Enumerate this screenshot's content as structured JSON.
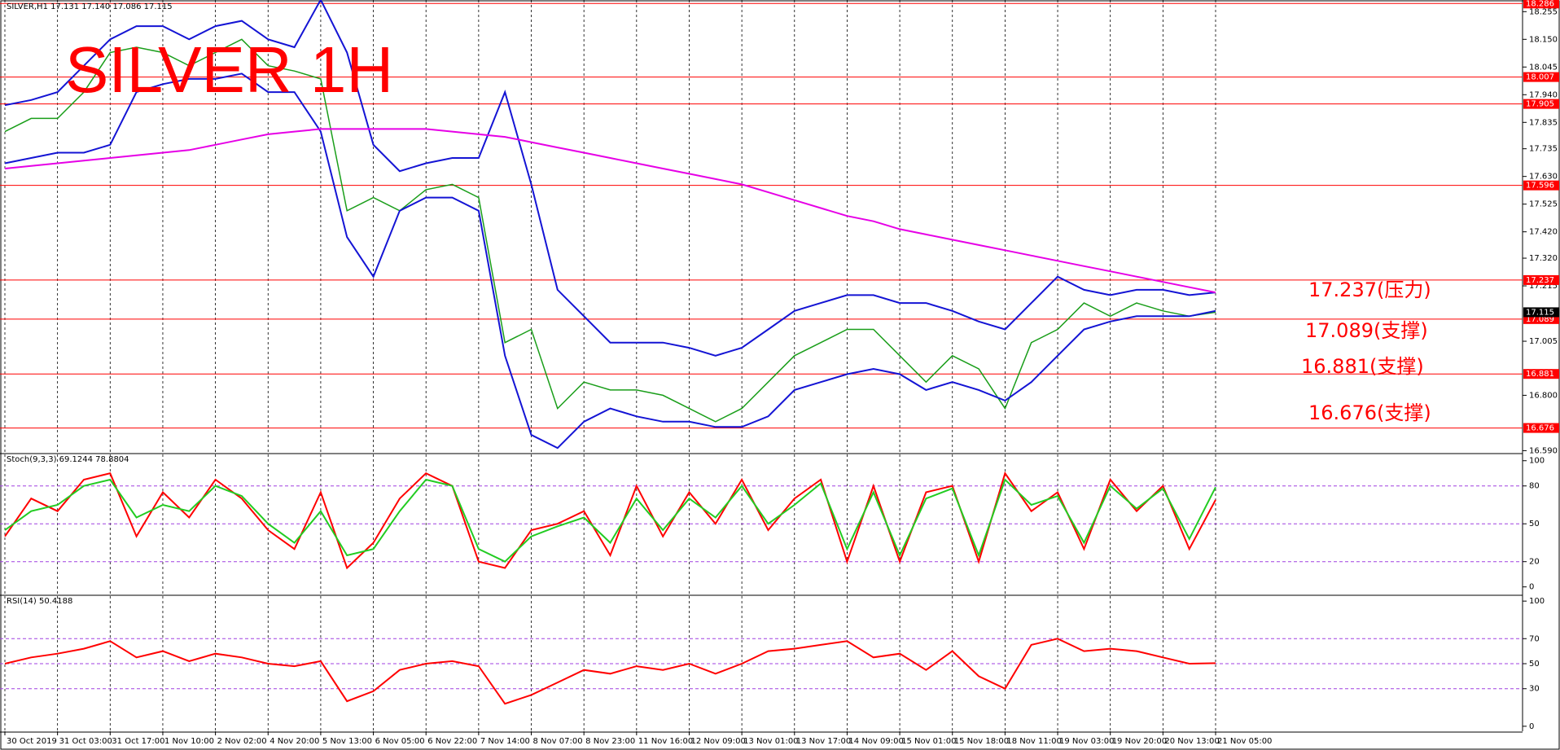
{
  "chart_data": [
    {
      "type": "line",
      "title": "SILVER 1H",
      "header": "SILVER,H1 17.131 17.140 17.086 17.115",
      "categories": [
        "30 Oct 2019",
        null,
        "31 Oct 03:00",
        null,
        "31 Oct 17:00",
        null,
        "1 Nov 10:00",
        null,
        "2 Nov 02:00",
        null,
        "4 Nov 20:00",
        null,
        "5 Nov 13:00",
        null,
        "6 Nov 05:00",
        null,
        "6 Nov 22:00",
        null,
        "7 Nov 14:00",
        null,
        "8 Nov 07:00",
        null,
        "8 Nov 23:00",
        null,
        "11 Nov 16:00",
        null,
        "12 Nov 09:00",
        null,
        "13 Nov 01:00",
        null,
        "13 Nov 17:00",
        null,
        "14 Nov 09:00",
        null,
        "15 Nov 01:00",
        null,
        "15 Nov 18:00",
        null,
        "18 Nov 11:00",
        null,
        "19 Nov 03:00",
        null,
        "19 Nov 20:00",
        null,
        "20 Nov 13:00",
        null,
        "21 Nov 05:00"
      ],
      "series": [
        {
          "name": "Close",
          "color": "#1a9e1a",
          "values": [
            17.8,
            17.85,
            17.85,
            17.95,
            18.1,
            18.12,
            18.1,
            18.05,
            18.1,
            18.15,
            18.05,
            18.03,
            18.0,
            17.5,
            17.55,
            17.5,
            17.58,
            17.6,
            17.55,
            17.0,
            17.05,
            16.75,
            16.85,
            16.82,
            16.82,
            16.8,
            16.75,
            16.7,
            16.75,
            16.85,
            16.95,
            17.0,
            17.05,
            17.05,
            16.95,
            16.85,
            16.95,
            16.9,
            16.75,
            17.0,
            17.05,
            17.15,
            17.1,
            17.15,
            17.12,
            17.1,
            17.115
          ]
        },
        {
          "name": "Upper band",
          "color": "#1414d4",
          "values": [
            17.9,
            17.92,
            17.95,
            18.05,
            18.15,
            18.2,
            18.2,
            18.15,
            18.2,
            18.22,
            18.15,
            18.12,
            18.3,
            18.1,
            17.75,
            17.65,
            17.68,
            17.7,
            17.7,
            17.95,
            17.6,
            17.2,
            17.1,
            17.0,
            17.0,
            17.0,
            16.98,
            16.95,
            16.98,
            17.05,
            17.12,
            17.15,
            17.18,
            17.18,
            17.15,
            17.15,
            17.12,
            17.08,
            17.05,
            17.15,
            17.25,
            17.2,
            17.18,
            17.2,
            17.2,
            17.18,
            17.19
          ]
        },
        {
          "name": "Lower band",
          "color": "#1414d4",
          "values": [
            17.68,
            17.7,
            17.72,
            17.72,
            17.75,
            17.95,
            17.98,
            18.0,
            18.0,
            18.02,
            17.95,
            17.95,
            17.8,
            17.4,
            17.25,
            17.5,
            17.55,
            17.55,
            17.5,
            16.95,
            16.65,
            16.6,
            16.7,
            16.75,
            16.72,
            16.7,
            16.7,
            16.68,
            16.68,
            16.72,
            16.82,
            16.85,
            16.88,
            16.9,
            16.88,
            16.82,
            16.85,
            16.82,
            16.78,
            16.85,
            16.95,
            17.05,
            17.08,
            17.1,
            17.1,
            17.1,
            17.12
          ]
        },
        {
          "name": "MA",
          "color": "#e600e6",
          "values": [
            17.66,
            17.67,
            17.68,
            17.69,
            17.7,
            17.71,
            17.72,
            17.73,
            17.75,
            17.77,
            17.79,
            17.8,
            17.81,
            17.81,
            17.81,
            17.81,
            17.81,
            17.8,
            17.79,
            17.78,
            17.76,
            17.74,
            17.72,
            17.7,
            17.68,
            17.66,
            17.64,
            17.62,
            17.6,
            17.57,
            17.54,
            17.51,
            17.48,
            17.46,
            17.43,
            17.41,
            17.39,
            17.37,
            17.35,
            17.33,
            17.31,
            17.29,
            17.27,
            17.25,
            17.23,
            17.21,
            17.19
          ]
        }
      ],
      "ylim": [
        16.582,
        18.293
      ],
      "yticks": [
        18.255,
        {
          "value": 18.15,
          "label": "18.150"
        },
        18.045,
        {
          "value": 17.94,
          "label": "17.940"
        },
        17.835,
        17.735,
        {
          "value": 17.63,
          "label": "17.630"
        },
        17.525,
        {
          "value": 17.42,
          "label": "17.420"
        },
        {
          "value": 17.32,
          "label": "17.320"
        },
        17.215,
        17.005,
        {
          "value": 16.8,
          "label": "16.800"
        },
        {
          "value": 16.59,
          "label": "16.590"
        }
      ],
      "levels": [
        18.286,
        18.007,
        17.905,
        17.596,
        17.237,
        17.089,
        16.881,
        16.676
      ],
      "level_color": "#ff0000",
      "last_price": 17.115,
      "annotations": [
        "17.237(压力)",
        "17.089(支撑)",
        "16.881(支撑)",
        "16.676(支撑)"
      ],
      "grid": true
    },
    {
      "type": "line",
      "title": "Stoch(9,3,3) 69.1244 78.8804",
      "series": [
        {
          "name": "%K",
          "color": "#ff0000",
          "values": [
            40,
            70,
            60,
            85,
            90,
            40,
            75,
            55,
            85,
            70,
            45,
            30,
            75,
            15,
            35,
            70,
            90,
            80,
            20,
            15,
            45,
            50,
            60,
            25,
            80,
            40,
            75,
            50,
            85,
            45,
            70,
            85,
            20,
            80,
            20,
            75,
            80,
            20,
            90,
            60,
            75,
            30,
            85,
            60,
            80,
            30,
            69
          ]
        },
        {
          "name": "%D",
          "color": "#22cc22",
          "values": [
            45,
            60,
            65,
            80,
            85,
            55,
            65,
            60,
            80,
            72,
            50,
            35,
            60,
            25,
            30,
            60,
            85,
            80,
            30,
            20,
            40,
            48,
            55,
            35,
            70,
            45,
            70,
            55,
            80,
            50,
            65,
            82,
            30,
            75,
            25,
            70,
            78,
            25,
            85,
            65,
            72,
            35,
            80,
            62,
            78,
            38,
            79
          ]
        }
      ],
      "ylim": [
        -6,
        105
      ],
      "yticks": [
        100,
        80,
        50,
        20,
        0
      ],
      "levels": [
        80,
        50,
        20
      ],
      "level_color": "#a040e0",
      "grid": true
    },
    {
      "type": "line",
      "title": "RSI(14) 50.4188",
      "series": [
        {
          "name": "RSI",
          "color": "#ff0000",
          "values": [
            50,
            55,
            58,
            62,
            68,
            55,
            60,
            52,
            58,
            55,
            50,
            48,
            52,
            20,
            28,
            45,
            50,
            52,
            48,
            18,
            25,
            35,
            45,
            42,
            48,
            45,
            50,
            42,
            50,
            60,
            62,
            65,
            68,
            55,
            58,
            45,
            60,
            40,
            30,
            65,
            70,
            60,
            62,
            60,
            55,
            50,
            50.4188
          ]
        }
      ],
      "ylim": [
        -4,
        104
      ],
      "yticks": [
        100,
        70,
        50,
        30,
        0
      ],
      "levels": [
        70,
        50,
        30
      ],
      "level_color": "#a040e0",
      "grid": true
    }
  ]
}
